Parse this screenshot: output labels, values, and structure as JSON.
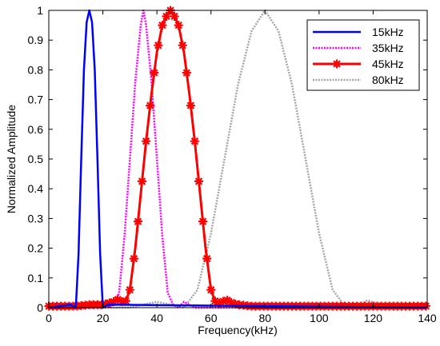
{
  "chart_data": {
    "type": "line",
    "xlabel": "Frequency(kHz)",
    "ylabel": "Normalized Amplitude",
    "xlim": [
      0,
      140
    ],
    "ylim": [
      0,
      1
    ],
    "x_ticks": [
      "0",
      "20",
      "40",
      "60",
      "80",
      "100",
      "120",
      "140"
    ],
    "y_ticks": [
      "0",
      "0.1",
      "0.2",
      "0.3",
      "0.4",
      "0.5",
      "0.6",
      "0.7",
      "0.8",
      "0.9",
      "1"
    ],
    "grid": false,
    "legend_position": "top-right",
    "series": [
      {
        "name": "15kHz",
        "color": "#0000ff",
        "style": "solid",
        "marker": "none",
        "x": [
          0,
          8,
          10,
          11,
          12,
          13,
          14,
          15,
          16,
          17,
          18,
          19,
          20,
          22,
          140
        ],
        "y": [
          0,
          0.01,
          0.0,
          0.18,
          0.5,
          0.8,
          0.96,
          1.0,
          0.96,
          0.8,
          0.5,
          0.18,
          0.0,
          0.01,
          0
        ]
      },
      {
        "name": "35kHz",
        "color": "#ff00ff",
        "style": "dotted",
        "marker": "none",
        "x": [
          0,
          20,
          24,
          26,
          28,
          30,
          32,
          34,
          35,
          36,
          38,
          40,
          42,
          44,
          46,
          48,
          50,
          54,
          140
        ],
        "y": [
          0,
          0.0,
          0.01,
          0.05,
          0.24,
          0.5,
          0.76,
          0.95,
          1.0,
          0.95,
          0.76,
          0.5,
          0.24,
          0.05,
          0.01,
          0.0,
          0.02,
          0.0,
          0
        ]
      },
      {
        "name": "45kHz",
        "color": "#ff0000",
        "style": "solid",
        "marker": "star",
        "x": [
          0,
          5,
          10,
          15,
          20,
          24,
          26,
          28,
          30,
          32,
          34,
          36,
          38,
          40,
          42,
          44,
          45,
          46,
          48,
          50,
          52,
          54,
          56,
          58,
          60,
          62,
          64,
          66,
          68,
          70,
          75,
          80,
          90,
          100,
          110,
          120,
          130,
          140
        ],
        "y": [
          0.005,
          0.005,
          0.005,
          0.01,
          0.01,
          0.02,
          0.03,
          0.01,
          0.06,
          0.2,
          0.38,
          0.56,
          0.72,
          0.86,
          0.95,
          0.99,
          1.0,
          0.99,
          0.95,
          0.86,
          0.72,
          0.56,
          0.38,
          0.2,
          0.06,
          0.01,
          0.02,
          0.025,
          0.015,
          0.01,
          0.005,
          0.005,
          0.005,
          0.005,
          0.005,
          0.005,
          0.005,
          0.005
        ]
      },
      {
        "name": "80kHz",
        "color": "#a6a6a6",
        "style": "dotted",
        "marker": "none",
        "x": [
          0,
          30,
          35,
          40,
          45,
          50,
          55,
          60,
          65,
          70,
          75,
          80,
          85,
          90,
          95,
          100,
          105,
          110,
          115,
          118,
          122,
          125,
          140
        ],
        "y": [
          0,
          0.0,
          0.01,
          0.02,
          0.01,
          0.0,
          0.06,
          0.25,
          0.5,
          0.75,
          0.93,
          1.0,
          0.93,
          0.75,
          0.5,
          0.25,
          0.06,
          0.0,
          0.01,
          0.025,
          0.01,
          0.0,
          0
        ]
      }
    ]
  }
}
